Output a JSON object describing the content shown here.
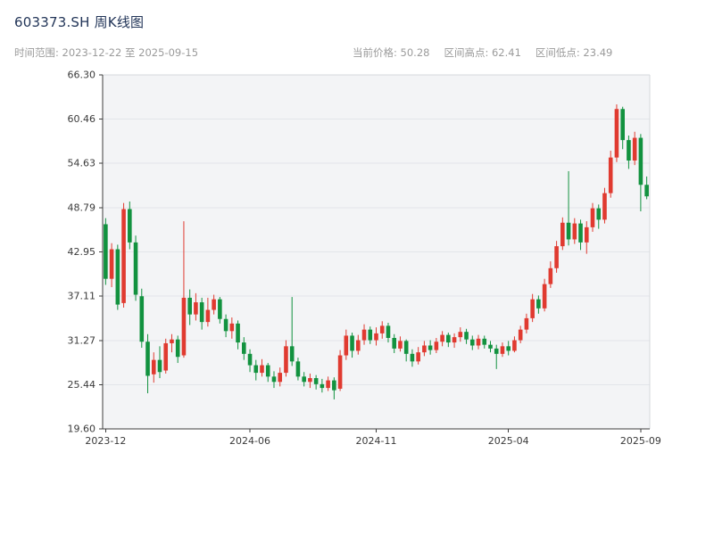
{
  "header": {
    "title": "603373.SH 周K线图"
  },
  "subheader": {
    "time_range": "时间范围: 2023-12-22 至 2025-09-15",
    "current_price": "当前价格: 50.28",
    "range_high": "区间高点: 62.41",
    "range_low": "区间低点: 23.49"
  },
  "colors": {
    "up": "#e03a30",
    "down": "#12923f",
    "plot_bg": "#f3f4f6",
    "grid": "#e3e5ea",
    "spine": "#3c3c3c",
    "spine_light": "#d6d8dc",
    "tick_text": "#3a3a3a",
    "title": "#223558",
    "subtext": "#9b9b9b"
  },
  "chart_data": {
    "type": "candlestick",
    "title": "603373.SH 周K线图",
    "symbol": "603373.SH",
    "interval": "weekly",
    "current_price": 50.28,
    "range_high": 62.41,
    "range_low": 23.49,
    "range_start": "2023-12-22",
    "range_end": "2025-09-15",
    "ylim": [
      19.6,
      66.3
    ],
    "y_ticks": [
      19.6,
      25.44,
      31.27,
      37.11,
      42.95,
      48.79,
      54.63,
      60.46,
      66.3
    ],
    "x_tick_labels": [
      "2023-12",
      "2024-06",
      "2024-11",
      "2025-04",
      "2025-09"
    ],
    "x_tick_indices": [
      0,
      24,
      45,
      67,
      89
    ],
    "grid": "horizontal",
    "columns": [
      "date",
      "open",
      "high",
      "low",
      "close"
    ],
    "candles": [
      [
        "2023-12-22",
        46.6,
        47.4,
        38.6,
        39.4
      ],
      [
        "2023-12-29",
        39.4,
        44.1,
        38.3,
        43.3
      ],
      [
        "2024-01-05",
        43.3,
        43.9,
        35.3,
        36.0
      ],
      [
        "2024-01-12",
        36.2,
        49.4,
        35.6,
        48.6
      ],
      [
        "2024-01-19",
        48.6,
        49.6,
        43.3,
        44.2
      ],
      [
        "2024-01-26",
        44.2,
        45.1,
        36.5,
        37.3
      ],
      [
        "2024-02-02",
        37.1,
        38.1,
        30.3,
        31.1
      ],
      [
        "2024-02-09",
        31.1,
        32.1,
        24.3,
        26.6
      ],
      [
        "2024-02-16",
        26.8,
        29.7,
        25.7,
        28.7
      ],
      [
        "2024-02-23",
        28.7,
        30.5,
        26.3,
        27.1
      ],
      [
        "2024-03-01",
        27.3,
        31.5,
        26.9,
        30.9
      ],
      [
        "2024-03-08",
        30.9,
        32.1,
        29.7,
        31.4
      ],
      [
        "2024-03-15",
        31.4,
        31.9,
        28.3,
        29.1
      ],
      [
        "2024-03-22",
        29.3,
        47.0,
        29.0,
        36.9
      ],
      [
        "2024-03-29",
        36.9,
        38.0,
        33.3,
        34.7
      ],
      [
        "2024-04-05",
        34.7,
        37.5,
        33.9,
        36.3
      ],
      [
        "2024-04-12",
        36.3,
        36.9,
        32.7,
        33.7
      ],
      [
        "2024-04-19",
        33.7,
        36.9,
        33.1,
        35.3
      ],
      [
        "2024-04-26",
        35.3,
        37.3,
        34.7,
        36.7
      ],
      [
        "2024-05-03",
        36.7,
        37.0,
        33.5,
        34.1
      ],
      [
        "2024-05-10",
        34.1,
        34.7,
        31.7,
        32.5
      ],
      [
        "2024-05-17",
        32.5,
        34.3,
        31.5,
        33.5
      ],
      [
        "2024-05-24",
        33.5,
        33.9,
        30.1,
        31.0
      ],
      [
        "2024-05-31",
        31.0,
        31.7,
        28.7,
        29.5
      ],
      [
        "2024-06-07",
        29.5,
        30.1,
        27.1,
        28.0
      ],
      [
        "2024-06-14",
        28.0,
        28.7,
        26.0,
        27.0
      ],
      [
        "2024-06-21",
        27.0,
        28.8,
        26.5,
        28.0
      ],
      [
        "2024-06-28",
        28.0,
        28.3,
        25.8,
        26.5
      ],
      [
        "2024-07-05",
        26.5,
        27.2,
        25.0,
        25.8
      ],
      [
        "2024-07-12",
        25.8,
        27.7,
        25.2,
        27.0
      ],
      [
        "2024-07-19",
        27.0,
        31.3,
        26.5,
        30.5
      ],
      [
        "2024-07-26",
        30.5,
        37.0,
        27.9,
        28.5
      ],
      [
        "2024-08-02",
        28.5,
        29.0,
        26.0,
        26.5
      ],
      [
        "2024-08-09",
        26.5,
        27.1,
        25.2,
        25.8
      ],
      [
        "2024-08-16",
        25.8,
        26.9,
        25.0,
        26.3
      ],
      [
        "2024-08-23",
        26.3,
        26.7,
        24.8,
        25.5
      ],
      [
        "2024-08-30",
        25.5,
        26.2,
        24.4,
        25.0
      ],
      [
        "2024-09-06",
        25.0,
        26.5,
        24.6,
        26.0
      ],
      [
        "2024-09-13",
        26.0,
        26.4,
        23.49,
        24.7
      ],
      [
        "2024-09-20",
        24.9,
        30.0,
        24.6,
        29.3
      ],
      [
        "2024-09-27",
        29.3,
        32.7,
        28.7,
        31.9
      ],
      [
        "2024-10-04",
        31.9,
        32.3,
        29.0,
        29.9
      ],
      [
        "2024-10-11",
        29.9,
        32.0,
        29.4,
        31.3
      ],
      [
        "2024-10-18",
        31.3,
        33.4,
        30.7,
        32.7
      ],
      [
        "2024-10-25",
        32.7,
        33.1,
        30.8,
        31.3
      ],
      [
        "2024-11-01",
        31.3,
        33.0,
        30.6,
        32.2
      ],
      [
        "2024-11-08",
        32.2,
        33.8,
        31.5,
        33.2
      ],
      [
        "2024-11-15",
        33.2,
        33.6,
        31.0,
        31.6
      ],
      [
        "2024-11-22",
        31.6,
        32.1,
        29.6,
        30.2
      ],
      [
        "2024-11-29",
        30.2,
        31.8,
        29.8,
        31.2
      ],
      [
        "2024-12-06",
        31.2,
        31.4,
        28.5,
        29.5
      ],
      [
        "2024-12-13",
        29.5,
        30.1,
        27.8,
        28.5
      ],
      [
        "2024-12-20",
        28.5,
        30.4,
        28.1,
        29.7
      ],
      [
        "2024-12-27",
        29.7,
        31.2,
        29.2,
        30.6
      ],
      [
        "2025-01-03",
        30.6,
        31.3,
        29.4,
        30.0
      ],
      [
        "2025-01-10",
        30.0,
        31.6,
        29.6,
        31.1
      ],
      [
        "2025-01-17",
        31.1,
        32.5,
        30.5,
        32.0
      ],
      [
        "2025-01-24",
        32.0,
        32.3,
        30.4,
        31.0
      ],
      [
        "2025-01-31",
        31.0,
        32.2,
        30.3,
        31.7
      ],
      [
        "2025-02-07",
        31.7,
        33.0,
        31.1,
        32.4
      ],
      [
        "2025-02-14",
        32.4,
        32.8,
        30.8,
        31.4
      ],
      [
        "2025-02-21",
        31.4,
        31.9,
        30.0,
        30.6
      ],
      [
        "2025-02-28",
        30.6,
        32.0,
        30.1,
        31.5
      ],
      [
        "2025-03-07",
        31.5,
        31.9,
        30.2,
        30.7
      ],
      [
        "2025-03-14",
        30.7,
        31.2,
        29.7,
        30.2
      ],
      [
        "2025-03-21",
        30.2,
        30.7,
        27.5,
        29.5
      ],
      [
        "2025-03-28",
        29.5,
        31.0,
        29.1,
        30.5
      ],
      [
        "2025-04-04",
        30.5,
        31.2,
        29.3,
        29.9
      ],
      [
        "2025-04-11",
        29.9,
        31.8,
        29.7,
        31.3
      ],
      [
        "2025-04-18",
        31.3,
        33.2,
        30.9,
        32.7
      ],
      [
        "2025-04-25",
        32.7,
        34.8,
        32.2,
        34.2
      ],
      [
        "2025-05-02",
        34.2,
        37.4,
        33.7,
        36.7
      ],
      [
        "2025-05-09",
        36.7,
        37.2,
        34.8,
        35.5
      ],
      [
        "2025-05-16",
        35.5,
        39.4,
        35.1,
        38.7
      ],
      [
        "2025-05-23",
        38.7,
        41.7,
        38.2,
        40.8
      ],
      [
        "2025-05-30",
        40.8,
        44.4,
        40.2,
        43.7
      ],
      [
        "2025-06-06",
        43.7,
        47.5,
        43.2,
        46.8
      ],
      [
        "2025-06-13",
        46.8,
        53.6,
        43.8,
        44.6
      ],
      [
        "2025-06-20",
        44.6,
        47.4,
        44.0,
        46.7
      ],
      [
        "2025-06-27",
        46.7,
        47.2,
        43.2,
        44.2
      ],
      [
        "2025-07-04",
        44.2,
        47.0,
        42.7,
        46.2
      ],
      [
        "2025-07-11",
        46.2,
        49.4,
        45.6,
        48.7
      ],
      [
        "2025-07-18",
        48.7,
        49.2,
        46.0,
        47.2
      ],
      [
        "2025-07-25",
        47.2,
        51.4,
        46.7,
        50.7
      ],
      [
        "2025-08-01",
        50.7,
        56.3,
        50.1,
        55.4
      ],
      [
        "2025-08-08",
        55.4,
        62.41,
        54.8,
        61.8
      ],
      [
        "2025-08-15",
        61.8,
        62.1,
        56.5,
        57.7
      ],
      [
        "2025-08-22",
        57.7,
        58.3,
        53.9,
        55.0
      ],
      [
        "2025-08-29",
        55.0,
        58.8,
        54.4,
        58.0
      ],
      [
        "2025-09-05",
        58.0,
        58.5,
        48.3,
        51.8
      ],
      [
        "2025-09-12",
        51.8,
        52.9,
        49.9,
        50.28
      ]
    ]
  }
}
